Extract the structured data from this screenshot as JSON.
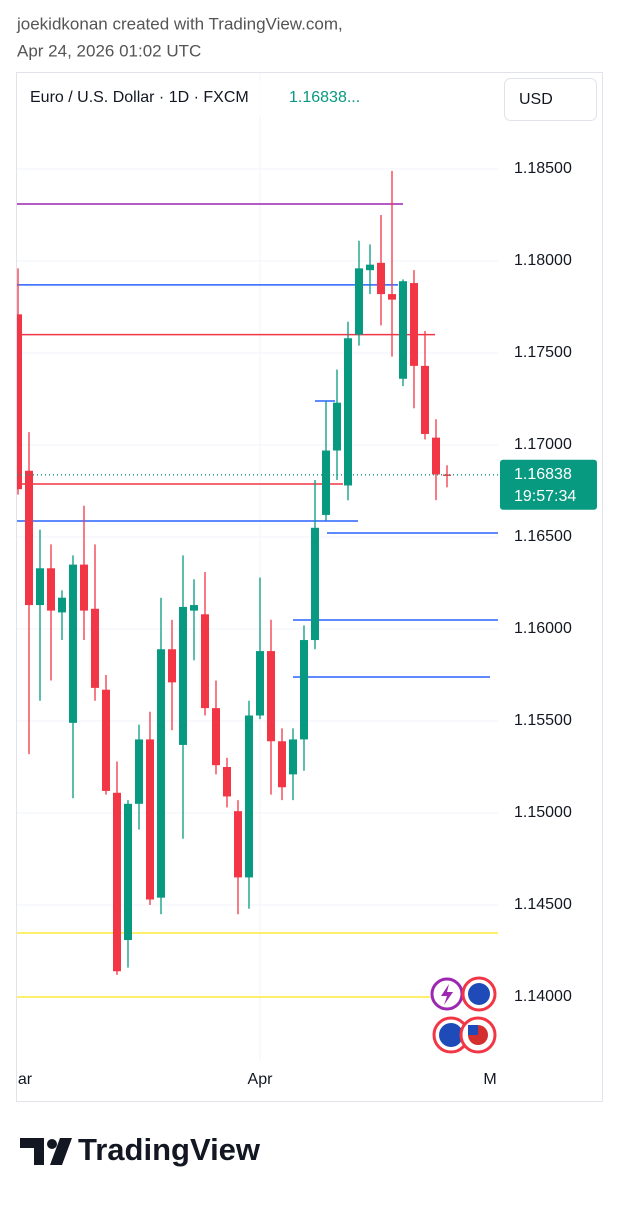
{
  "header": {
    "line1": "joekidkonan created with TradingView.com,",
    "line2": "Apr 24, 2026 01:02 UTC"
  },
  "chart_data": {
    "type": "candlestick",
    "title": "Euro / U.S. Dollar · 1D · FXCM",
    "last_value_label": "1.16838...",
    "currency": "USD",
    "up_color": "#089981",
    "down_color": "#f23645",
    "categories": [
      null,
      null,
      null,
      null,
      null,
      null,
      null,
      null,
      null,
      null,
      null,
      null,
      null,
      null,
      null,
      null,
      null,
      null,
      null,
      null,
      null,
      null,
      null,
      null,
      null,
      null,
      null,
      null,
      null,
      null,
      null,
      null,
      null,
      null,
      null,
      null,
      null,
      null,
      null,
      null
    ],
    "open": [
      1.1771,
      1.1686,
      1.1613,
      1.1633,
      1.1609,
      1.1549,
      1.1635,
      1.1611,
      1.1567,
      1.1511,
      1.1431,
      1.1505,
      1.154,
      1.1454,
      1.1589,
      1.1537,
      1.161,
      1.1608,
      1.1557,
      1.1525,
      1.1501,
      1.1465,
      1.1553,
      1.1588,
      1.1539,
      1.1521,
      1.154,
      1.1594,
      1.1662,
      1.1697,
      1.1678,
      1.176,
      1.1795,
      1.1799,
      1.1782,
      1.1736,
      1.1788,
      1.1743,
      1.1704,
      1.1684
    ],
    "high": [
      1.1796,
      1.1707,
      1.1654,
      1.1646,
      1.1621,
      1.164,
      1.1667,
      1.1646,
      1.1575,
      1.1528,
      1.1507,
      1.1548,
      1.1555,
      1.1617,
      1.1605,
      1.164,
      1.1627,
      1.1631,
      1.1572,
      1.153,
      1.1507,
      1.1561,
      1.1628,
      1.1605,
      1.1546,
      1.1546,
      1.1602,
      1.1681,
      1.1724,
      1.1741,
      1.1767,
      1.1811,
      1.1809,
      1.1825,
      1.1849,
      1.179,
      1.1795,
      1.1762,
      1.1714,
      1.1689
    ],
    "low": [
      1.1673,
      1.1532,
      1.1561,
      1.1572,
      1.1594,
      1.1508,
      1.1594,
      1.1561,
      1.151,
      1.1412,
      1.1416,
      1.1491,
      1.145,
      1.1445,
      1.1545,
      1.1486,
      1.1583,
      1.1553,
      1.1521,
      1.1503,
      1.1445,
      1.1448,
      1.1551,
      1.151,
      1.1507,
      1.1507,
      1.1523,
      1.1589,
      1.1659,
      1.1681,
      1.167,
      1.1754,
      1.1782,
      1.1765,
      1.1748,
      1.1732,
      1.172,
      1.1703,
      1.167,
      1.1677
    ],
    "close": [
      1.1676,
      1.1613,
      1.1633,
      1.161,
      1.1617,
      1.1635,
      1.161,
      1.1568,
      1.1512,
      1.1414,
      1.1505,
      1.154,
      1.1453,
      1.1589,
      1.1571,
      1.1612,
      1.1613,
      1.1557,
      1.1526,
      1.1509,
      1.1465,
      1.1553,
      1.1588,
      1.1539,
      1.1514,
      1.154,
      1.1594,
      1.1655,
      1.1697,
      1.1723,
      1.1758,
      1.1796,
      1.1798,
      1.1782,
      1.1779,
      1.1789,
      1.1743,
      1.1706,
      1.1684,
      1.16838
    ],
    "ylim": [
      1.1368,
      1.1877
    ],
    "yticks": [
      {
        "value": 1.14,
        "label": "1.14000"
      },
      {
        "value": 1.145,
        "label": "1.14500"
      },
      {
        "value": 1.15,
        "label": "1.15000"
      },
      {
        "value": 1.155,
        "label": "1.15500"
      },
      {
        "value": 1.16,
        "label": "1.16000"
      },
      {
        "value": 1.165,
        "label": "1.16500"
      },
      {
        "value": 1.17,
        "label": "1.17000"
      },
      {
        "value": 1.175,
        "label": "1.17500"
      },
      {
        "value": 1.18,
        "label": "1.18000"
      },
      {
        "value": 1.185,
        "label": "1.18500"
      }
    ],
    "x_labels": [
      "ar",
      "Apr",
      "M"
    ],
    "grid": true,
    "levels": [
      {
        "value": 1.1831,
        "color": "#9c27b0"
      },
      {
        "value": 1.1787,
        "color": "#2962ff"
      },
      {
        "value": 1.176,
        "color": "#f23645"
      },
      {
        "value": 1.17239,
        "color": "#2962ff"
      },
      {
        "value": 1.16788,
        "color": "#f23645"
      },
      {
        "value": 1.16587,
        "color": "#2962ff"
      },
      {
        "value": 1.16522,
        "color": "#2962ff"
      },
      {
        "value": 1.16049,
        "color": "#2962ff"
      },
      {
        "value": 1.15739,
        "color": "#2962ff"
      },
      {
        "value": 1.14348,
        "color": "#ffeb3b"
      },
      {
        "value": 1.14,
        "color": "#ffeb3b"
      }
    ],
    "current_price": 1.16838,
    "countdown": "19:57:34"
  },
  "footer": {
    "brand": "TradingView"
  }
}
